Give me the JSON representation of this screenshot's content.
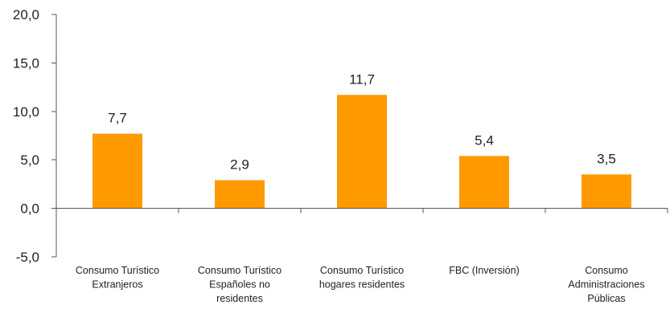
{
  "chart_data": {
    "type": "bar",
    "categories": [
      [
        "Consumo Turístico",
        "Extranjeros"
      ],
      [
        "Consumo Turístico",
        "Españoles no",
        "residentes"
      ],
      [
        "Consumo Turístico",
        "hogares residentes"
      ],
      [
        "FBC (Inversión)"
      ],
      [
        "Consumo",
        "Administraciones",
        "Públicas"
      ]
    ],
    "values": [
      7.7,
      2.9,
      11.7,
      5.4,
      3.5
    ],
    "value_labels": [
      "7,7",
      "2,9",
      "11,7",
      "5,4",
      "3,5"
    ],
    "y_ticks": [
      20,
      15,
      10,
      5,
      0,
      -5
    ],
    "y_tick_labels": [
      "20,0",
      "15,0",
      "10,0",
      "5,0",
      "0,0",
      "-5,0"
    ],
    "ylim": [
      -5,
      20
    ],
    "bar_color": "#FF9900",
    "grid": false,
    "title": "",
    "xlabel": "",
    "ylabel": ""
  }
}
